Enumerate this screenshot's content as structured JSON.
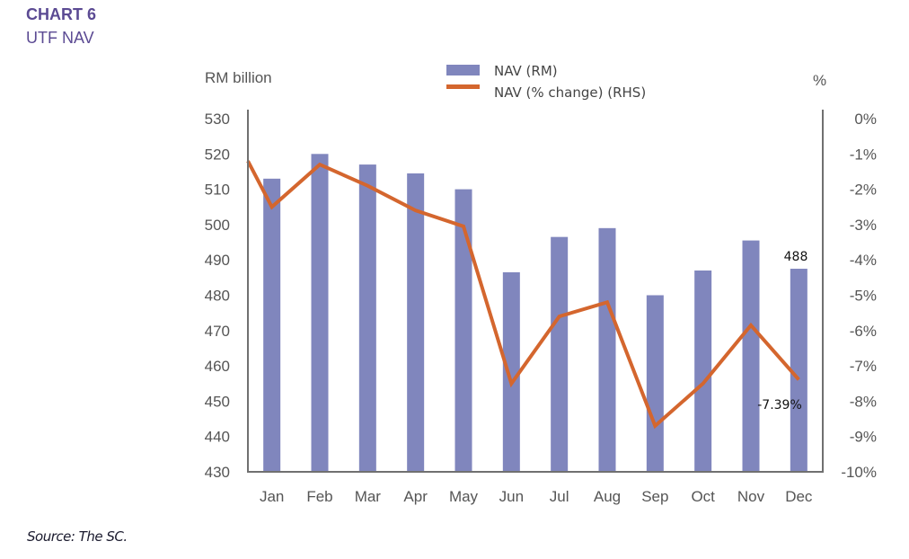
{
  "header": {
    "chart_number": "CHART 6",
    "chart_title": "UTF NAV"
  },
  "source": "Source: The SC.",
  "colors": {
    "bar": "#8086bd",
    "line": "#d4662e",
    "title": "#5b4a93",
    "axis": "#707070"
  },
  "chart_data": {
    "type": "bar+line",
    "title": "UTF NAV",
    "categories": [
      "Jan",
      "Feb",
      "Mar",
      "Apr",
      "May",
      "Jun",
      "Jul",
      "Aug",
      "Sep",
      "Oct",
      "Nov",
      "Dec"
    ],
    "series": [
      {
        "name": "NAV (RM)",
        "type": "bar",
        "axis": "left",
        "values": [
          513,
          520,
          517,
          514.5,
          510,
          486.5,
          496.5,
          499,
          480,
          487,
          495.5,
          487.5
        ]
      },
      {
        "name": "NAV (% change) (RHS)",
        "type": "line",
        "axis": "right",
        "start_value": -1.2,
        "values": [
          -2.5,
          -1.3,
          -1.9,
          -2.6,
          -3.05,
          -7.5,
          -5.6,
          -5.2,
          -8.7,
          -7.5,
          -5.85,
          -7.39
        ]
      }
    ],
    "ylabel_left": "RM billion",
    "ylabel_right": "%",
    "ylim_left": [
      430,
      530
    ],
    "ylim_right": [
      -10,
      0
    ],
    "yticks_left": [
      "530",
      "520",
      "510",
      "500",
      "490",
      "480",
      "470",
      "460",
      "450",
      "440",
      "430"
    ],
    "yticks_right": [
      "0%",
      "-1%",
      "-2%",
      "-3%",
      "-4%",
      "-5%",
      "-6%",
      "-7%",
      "-8%",
      "-9%",
      "-10%"
    ],
    "annotations": [
      {
        "text": "488",
        "category": "Dec",
        "series": "NAV (RM)"
      },
      {
        "text": "-7.39%",
        "category": "Dec",
        "series": "NAV (% change) (RHS)"
      }
    ],
    "legend": {
      "position": "top-center",
      "entries": [
        "NAV (RM)",
        "NAV (% change) (RHS)"
      ]
    },
    "grid": false
  }
}
